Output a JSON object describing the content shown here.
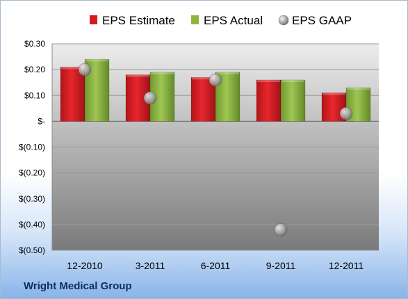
{
  "chart_data": {
    "type": "bar",
    "title": "",
    "xlabel": "",
    "ylabel": "",
    "categories": [
      "12-2010",
      "3-2011",
      "6-2011",
      "9-2011",
      "12-2011"
    ],
    "series": [
      {
        "name": "EPS Estimate",
        "kind": "bar",
        "color": "#d71920",
        "values": [
          0.21,
          0.18,
          0.17,
          0.16,
          0.11
        ]
      },
      {
        "name": "EPS Actual",
        "kind": "bar",
        "color": "#8db641",
        "values": [
          0.24,
          0.19,
          0.19,
          0.16,
          0.13
        ]
      },
      {
        "name": "EPS GAAP",
        "kind": "scatter",
        "color": "#b5b5b5",
        "values": [
          0.2,
          0.09,
          0.16,
          -0.42,
          0.03
        ]
      }
    ],
    "yticks": [
      "$(0.50)",
      "$(0.40)",
      "$(0.30)",
      "$(0.20)",
      "$(0.10)",
      "$-",
      "$0.10",
      "$0.20",
      "$0.30"
    ],
    "ytick_values": [
      -0.5,
      -0.4,
      -0.3,
      -0.2,
      -0.1,
      0,
      0.1,
      0.2,
      0.3
    ],
    "ylim": [
      -0.5,
      0.3
    ],
    "grid": true,
    "legend_position": "top"
  },
  "footer": {
    "company": "Wright Medical Group"
  }
}
